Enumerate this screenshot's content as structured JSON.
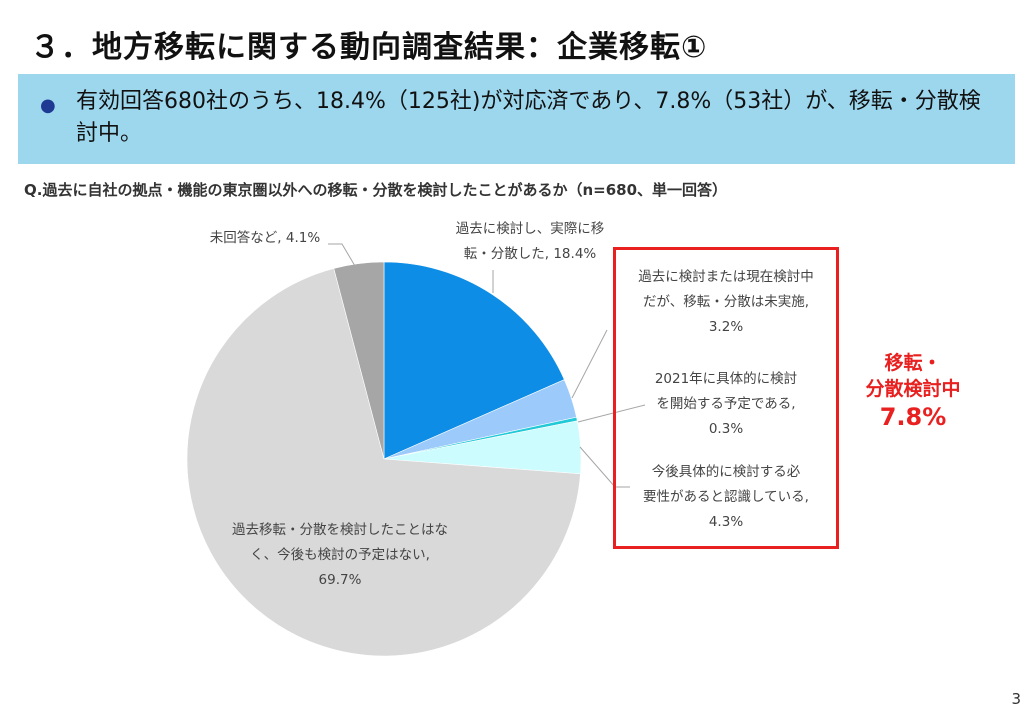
{
  "header": {
    "title": "３．地方移転に関する動向調査結果：企業移転①"
  },
  "banner": {
    "bullet_text": "有効回答680社のうち、18.4%（125社)が対応済であり、7.8%（53社）が、移転・分散検討中。"
  },
  "question": "Q.過去に自社の拠点・機能の東京圏以外への移転・分散を検討したことがあるか（n=680、単一回答）",
  "summary": {
    "line1": "移転・",
    "line2": "分散検討中",
    "line3": "7.8%"
  },
  "page_number": "3",
  "colors": {
    "banner_bg": "#9dd7ee",
    "highlight_red": "#e8201f"
  },
  "chart_data": {
    "type": "pie",
    "slices": [
      {
        "label": "過去に検討し、実際に移転・分散した, 18.4%",
        "value": 18.4,
        "color": "#0d8de6"
      },
      {
        "label": "過去に検討または現在検討中だが、移転・分散は未実施, 3.2%",
        "value": 3.2,
        "color": "#9ccbfb"
      },
      {
        "label": "2021年に具体的に検討を開始する予定である, 0.3%",
        "value": 0.3,
        "color": "#22c9d6"
      },
      {
        "label": "今後具体的に検討する必要性があると認識している, 4.3%",
        "value": 4.3,
        "color": "#ccfcfd"
      },
      {
        "label": "過去移転・分散を検討したことはなく、今後も検討の予定はない, 69.7%",
        "value": 69.7,
        "color": "#d9d9d9"
      },
      {
        "label": "未回答など, 4.1%",
        "value": 4.1,
        "color": "#a6a6a6"
      }
    ],
    "label_lines": [
      [
        "過去に検討し、実際に移",
        "転・分散した, 18.4%"
      ],
      [
        "過去に検討または現在検討中",
        "だが、移転・分散は未実施,",
        "3.2%"
      ],
      [
        "2021年に具体的に検討",
        "を開始する予定である,",
        "0.3%"
      ],
      [
        "今後具体的に検討する必",
        "要性があると認識している,",
        "4.3%"
      ],
      [
        "過去移転・分散を検討したことはな",
        "く、今後も検討の予定はない,",
        "69.7%"
      ],
      [
        "未回答など, 4.1%"
      ]
    ]
  }
}
